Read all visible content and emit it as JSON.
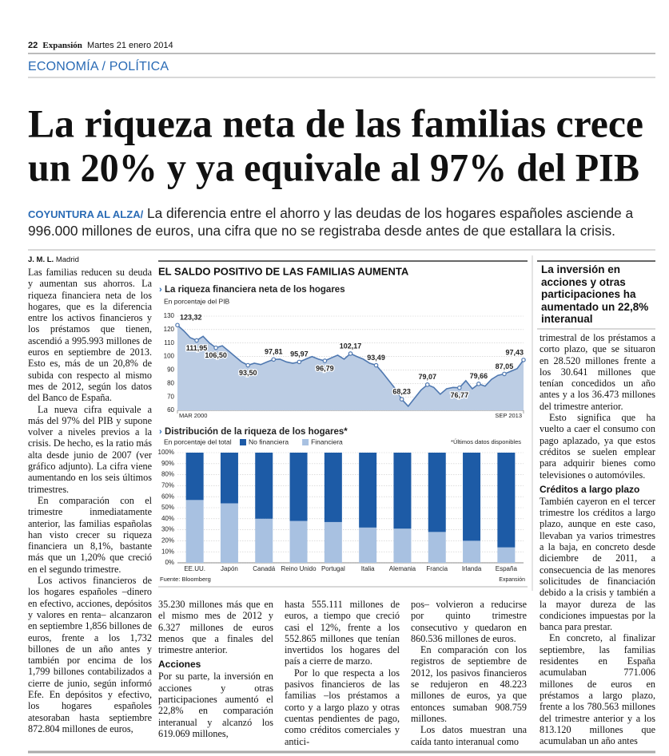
{
  "header": {
    "page": "22",
    "paper": "Expansión",
    "date": "Martes 21 enero 2014"
  },
  "section": "ECONOMÍA / POLÍTICA",
  "headline": [
    "La riqueza neta de las familias crece",
    "un 20% y ya equivale al 97% del PIB"
  ],
  "subhead": {
    "kicker": "COYUNTURA AL ALZA/",
    "text": " La diferencia entre el ahorro y las deudas de los hogares españoles asciende a 996.000 millones de euros, una cifra que no se registraba desde antes de que estallara la crisis."
  },
  "byline": {
    "author": "J. M. L.",
    "place": "Madrid"
  },
  "pull_quote": "La inversión en acciones y otras participaciones ha aumentado un 22,8% interanual",
  "columns": [
    [
      {
        "p": "Las familias reducen su deuda y aumentan sus ahorros. La riqueza financiera neta de los hogares, que es la diferencia entre los activos financieros y los préstamos que tienen, ascendió a 995.993 millones de euros en septiembre de 2013. Esto es, más de un 20,8% de subida con respecto al mismo mes de 2012, según los datos del Banco de España."
      },
      {
        "p": "La nueva cifra equivale a más del 97% del PIB y supone volver a niveles previos a la crisis. De hecho, es la ratio más alta desde junio de 2007 (ver gráfico adjunto). La cifra viene aumentando en los seis últimos trimestres."
      },
      {
        "p": "En comparación con el trimestre inmediatamente anterior, las familias españolas han visto crecer su riqueza financiera un 8,1%, bastante más que un 1,20% que creció en el segundo trimestre."
      },
      {
        "p": "Los activos financieros de los hogares españoles –dinero en efectivo, acciones, depósitos y valores en renta– alcanzaron en septiembre 1,856 billones de euros, frente a los 1,732 billones de un año antes y también por encima de los 1,799 billones contabilizados a cierre de junio, según informó Efe. En depósitos y efectivo, los hogares españoles atesoraban hasta septiembre 872.804 millones de euros,"
      }
    ],
    [
      {
        "p": "35.230 millones más que en el mismo mes de 2012 y 6.327 millones de euros menos que a finales del trimestre anterior."
      },
      {
        "heading": "Acciones"
      },
      {
        "p": "Por su parte, la inversión en acciones y otras participaciones aumentó el 22,8% en comparación interanual y alcanzó los 619.069 millones,"
      }
    ],
    [
      {
        "p": "hasta 555.111 millones de euros, a tiempo que creció casi el 12%, frente a los 552.865 millones que tenían invertidos los hogares del país a cierre de marzo."
      },
      {
        "p": "Por lo que respecta a los pasivos financieros de las familias –los préstamos a corto y a largo plazo y otras cuentas pendientes de pago, como créditos comerciales y antici-"
      }
    ],
    [
      {
        "p": "pos– volvieron a reducirse por quinto trimestre consecutivo y quedaron en 860.536 millones de euros."
      },
      {
        "p": "En comparación con los registros de septiembre de 2012, los pasivos financieros se redujeron en 48.223 millones de euros, ya que entonces sumaban 908.759 millones."
      },
      {
        "p": "Los datos muestran una caída tanto interanual como"
      }
    ],
    [
      {
        "p": "trimestral de los préstamos a corto plazo, que se situaron en 28.520 millones frente a los 30.641 millones que tenían concedidos un año antes y a los 36.473 millones del trimestre anterior."
      },
      {
        "p": "Esto significa que ha vuelto a caer el consumo con pago aplazado, ya que estos créditos se suelen emplear para adquirir bienes como televisiones o automóviles."
      },
      {
        "heading": "Créditos a largo plazo"
      },
      {
        "p": "También cayeron en el tercer trimestre los créditos a largo plazo, aunque en este caso, llevaban ya varios trimestres a la baja, en concreto desde diciembre de 2011, a consecuencia de las menores solicitudes de financiación debido a la crisis y también a la mayor dureza de las condiciones impuestas por la banca para prestar."
      },
      {
        "p": "En concreto, al finalizar septiembre, las familias residentes en España acumulaban 771.006 millones de euros en préstamos a largo plazo, frente a los 780.563 millones del trimestre anterior y a los 813.120 millones que acumulaban un año antes"
      }
    ]
  ],
  "chart_box": {
    "title": "EL SALDO POSITIVO DE LAS FAMILIAS AUMENTA",
    "source": "Fuente: Bloomberg",
    "credit": "Expansión"
  },
  "chart_data": [
    {
      "type": "line",
      "title": "La riqueza financiera neta de los hogares",
      "subtitle": "En porcentaje del PIB",
      "categories": [
        "MAR 2000",
        null,
        null,
        null,
        null,
        null,
        null,
        null,
        null,
        null,
        null,
        null,
        null,
        null,
        null,
        null,
        null,
        null,
        null,
        null,
        null,
        null,
        null,
        null,
        null,
        null,
        null,
        null,
        null,
        null,
        null,
        null,
        null,
        null,
        null,
        null,
        null,
        null,
        null,
        null,
        null,
        null,
        null,
        null,
        null,
        null,
        null,
        null,
        null,
        null,
        null,
        null,
        null,
        null,
        "SEP 2013"
      ],
      "values": [
        123.32,
        119,
        114,
        111.95,
        115,
        110,
        106.5,
        108,
        104,
        100,
        96,
        93.5,
        95,
        94,
        96,
        97.81,
        98,
        96,
        95,
        95.97,
        98,
        100,
        98,
        96.79,
        99,
        101,
        98,
        102.17,
        100,
        98,
        95,
        93.49,
        88,
        82,
        76,
        68.23,
        63,
        69,
        75,
        79.07,
        77,
        72,
        76,
        77,
        76.77,
        82,
        76,
        79.66,
        78,
        83,
        86,
        87.05,
        89,
        91,
        97.43
      ],
      "value_labels": [
        "123,32",
        null,
        null,
        "111,95",
        null,
        null,
        "106,50",
        null,
        null,
        null,
        null,
        "93,50",
        null,
        null,
        null,
        "97,81",
        null,
        null,
        null,
        "95,97",
        null,
        null,
        null,
        "96,79",
        null,
        null,
        null,
        "102,17",
        null,
        null,
        null,
        "93,49",
        null,
        null,
        null,
        "68,23",
        null,
        null,
        null,
        "79,07",
        null,
        null,
        null,
        null,
        "76,77",
        null,
        null,
        "79,66",
        null,
        null,
        null,
        "87,05",
        null,
        null,
        "97,43"
      ],
      "color": "#4f78b0",
      "area_color": "#bccde4",
      "ylim": [
        60,
        130
      ],
      "yticks": [
        60,
        70,
        80,
        90,
        100,
        110,
        120,
        130
      ],
      "grid": true
    },
    {
      "type": "bar",
      "stacked": true,
      "title": "Distribución de la riqueza de los hogares*",
      "subtitle": "En porcentaje del total",
      "note": "*Últimos datos disponibles",
      "categories": [
        "EE.UU.",
        "Japón",
        "Canadá",
        "Reino Unido",
        "Portugal",
        "Italia",
        "Alemania",
        "Francia",
        "Irlanda",
        "España"
      ],
      "series": [
        {
          "name": "No financiera",
          "color": "#1d5ba6",
          "values": [
            43,
            46,
            60,
            62,
            63,
            68,
            69,
            72,
            80,
            86
          ]
        },
        {
          "name": "Financiera",
          "color": "#a8c1e1",
          "values": [
            57,
            54,
            40,
            38,
            37,
            32,
            31,
            28,
            20,
            14
          ]
        }
      ],
      "ylim": [
        0,
        100
      ],
      "yticks": [
        {
          "value": 0,
          "label": "0%"
        },
        {
          "value": 10,
          "label": "10%"
        },
        {
          "value": 20,
          "label": "20%"
        },
        {
          "value": 30,
          "label": "30%"
        },
        {
          "value": 40,
          "label": "40%"
        },
        {
          "value": 50,
          "label": "50%"
        },
        {
          "value": 60,
          "label": "60%"
        },
        {
          "value": 70,
          "label": "70%"
        },
        {
          "value": 80,
          "label": "80%"
        },
        {
          "value": 90,
          "label": "90%"
        },
        {
          "value": 100,
          "label": "100%"
        }
      ],
      "legend": "top",
      "grid": true
    }
  ]
}
